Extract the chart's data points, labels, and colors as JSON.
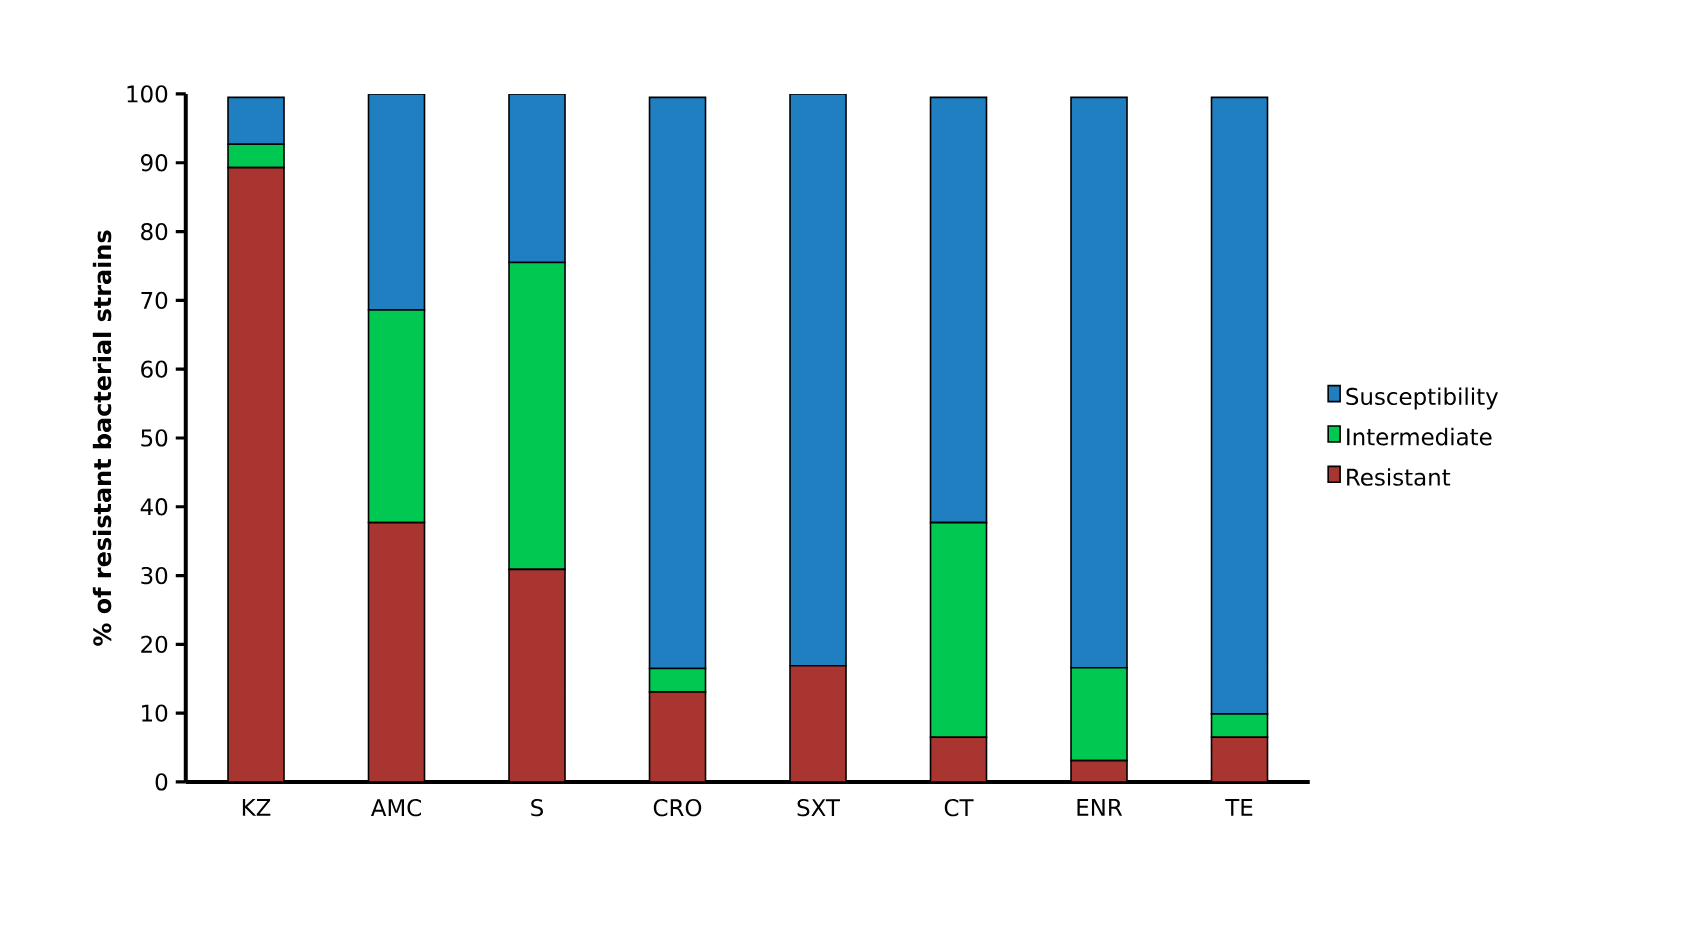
{
  "chart_data": {
    "type": "bar",
    "stacked": true,
    "ylabel": "% of resistant bacterial strains",
    "categories": [
      "KZ",
      "AMC",
      "S",
      "CRO",
      "SXT",
      "CT",
      "ENR",
      "TE"
    ],
    "series": [
      {
        "name": "Resistant",
        "color": "#a93530",
        "values": [
          89.3,
          37.7,
          30.9,
          13.1,
          16.9,
          6.5,
          3.1,
          6.5
        ]
      },
      {
        "name": "Intermediate",
        "color": "#00c850",
        "values": [
          3.4,
          30.9,
          44.6,
          3.4,
          0,
          31.2,
          13.5,
          3.4
        ]
      },
      {
        "name": "Susceptibility",
        "color": "#1f7fc1",
        "values": [
          6.8,
          31.4,
          24.5,
          83.0,
          83.1,
          61.8,
          82.9,
          89.6
        ]
      }
    ],
    "ylim": [
      0,
      100
    ],
    "yticks": [
      0,
      10,
      20,
      30,
      40,
      50,
      60,
      70,
      80,
      90,
      100
    ],
    "legend": "right"
  }
}
